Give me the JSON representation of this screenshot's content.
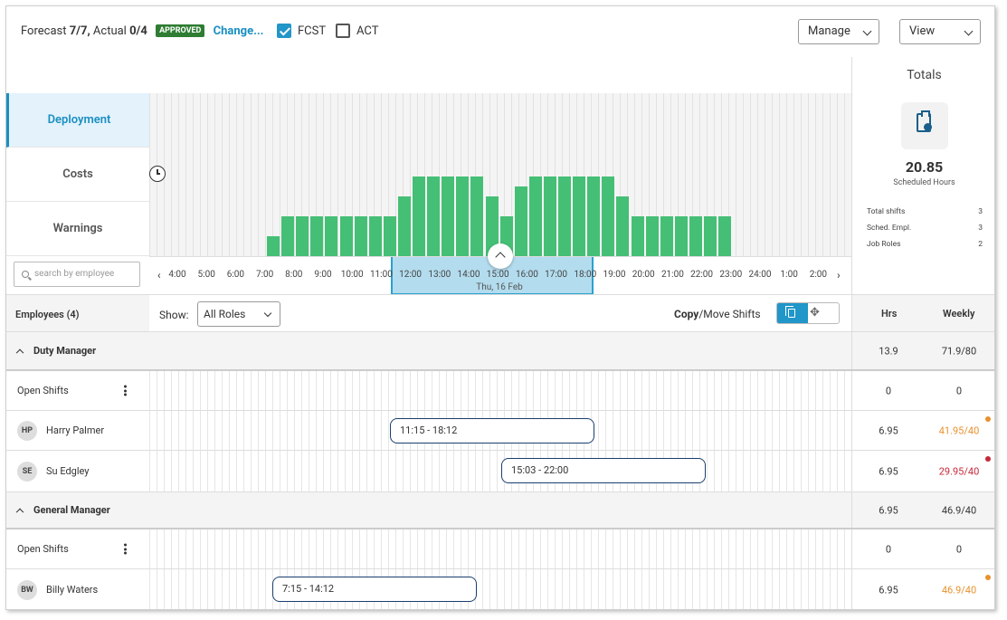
{
  "header": {
    "forecast_label": "Forecast",
    "forecast_value": "7/7,",
    "actual_label": "Actual",
    "actual_value": "0/4",
    "approved": "APPROVED",
    "change": "Change...",
    "fcst": "FCST",
    "act": "ACT",
    "manage": "Manage",
    "view": "View"
  },
  "nav": {
    "deployment": "Deployment",
    "costs": "Costs",
    "warnings": "Warnings"
  },
  "search": {
    "placeholder": "search by employee"
  },
  "chart_data": {
    "type": "bar",
    "values": [
      2,
      4,
      4,
      4,
      4,
      4,
      4,
      4,
      4,
      6,
      8,
      8,
      8,
      8,
      8,
      6,
      4,
      7,
      8,
      8,
      8,
      8,
      8,
      8,
      6,
      4,
      4,
      4,
      4,
      4,
      4,
      4
    ]
  },
  "timeline": {
    "ticks": [
      "4:00",
      "5:00",
      "6:00",
      "7:00",
      "8:00",
      "9:00",
      "10:00",
      "11:00",
      "12:00",
      "13:00",
      "14:00",
      "15:00",
      "16:00",
      "17:00",
      "18:00",
      "19:00",
      "20:00",
      "21:00",
      "22:00",
      "23:00",
      "24:00",
      "1:00",
      "2:00"
    ],
    "date": "Thu, 16 Feb"
  },
  "totals": {
    "title": "Totals",
    "hours": "20.85",
    "hours_label": "Scheduled Hours",
    "stats": [
      {
        "label": "Total shifts",
        "value": "3"
      },
      {
        "label": "Sched. Empl.",
        "value": "3"
      },
      {
        "label": "Job Roles",
        "value": "2"
      }
    ]
  },
  "toolbar": {
    "employees": "Employees (4)",
    "show": "Show:",
    "roles": "All Roles",
    "copy": "Copy",
    "move": "/Move Shifts",
    "hrs": "Hrs",
    "weekly": "Weekly"
  },
  "rows": [
    {
      "type": "group",
      "name": "Duty Manager",
      "hrs": "13.9",
      "weekly": "71.9/80"
    },
    {
      "type": "open",
      "name": "Open Shifts",
      "hrs": "0",
      "weekly": "0"
    },
    {
      "type": "emp",
      "initials": "HP",
      "name": "Harry Palmer",
      "shift": "11:15 - 18:12",
      "hrs": "6.95",
      "weekly": "41.95/40",
      "color": "#e8912d"
    },
    {
      "type": "emp",
      "initials": "SE",
      "name": "Su Edgley",
      "shift": "15:03 - 22:00",
      "hrs": "6.95",
      "weekly": "29.95/40",
      "color": "#c62839"
    },
    {
      "type": "group",
      "name": "General Manager",
      "hrs": "6.95",
      "weekly": "46.9/40"
    },
    {
      "type": "open",
      "name": "Open Shifts",
      "hrs": "0",
      "weekly": "0"
    },
    {
      "type": "emp",
      "initials": "BW",
      "name": "Billy Waters",
      "shift": "7:15 - 14:12",
      "hrs": "6.95",
      "weekly": "46.9/40",
      "color": "#e8912d"
    }
  ]
}
